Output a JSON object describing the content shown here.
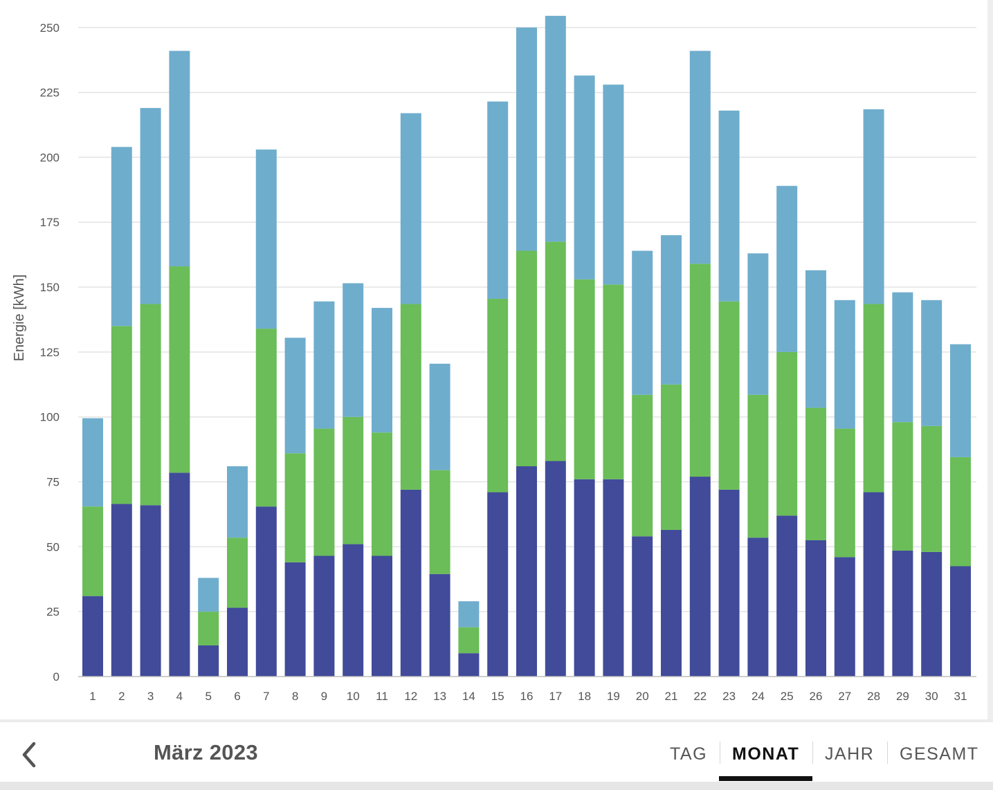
{
  "chart_data": {
    "type": "bar",
    "stacked": true,
    "ylabel": "Energie [kWh]",
    "xlabel": "",
    "ylim": [
      0,
      255
    ],
    "yticks": [
      0,
      25,
      50,
      75,
      100,
      125,
      150,
      175,
      200,
      225,
      250
    ],
    "grid": true,
    "categories": [
      "1",
      "2",
      "3",
      "4",
      "5",
      "6",
      "7",
      "8",
      "9",
      "10",
      "11",
      "12",
      "13",
      "14",
      "15",
      "16",
      "17",
      "18",
      "19",
      "20",
      "21",
      "22",
      "23",
      "24",
      "25",
      "26",
      "27",
      "28",
      "29",
      "30",
      "31"
    ],
    "series": [
      {
        "color": "#414b9a",
        "values": [
          31,
          66.5,
          66,
          78.5,
          12,
          26.5,
          65.5,
          44,
          46.5,
          51,
          46.5,
          72,
          39.5,
          9,
          71,
          81,
          83,
          76,
          76,
          54,
          56.5,
          77,
          72,
          53.5,
          62,
          52.5,
          46,
          71,
          48.5,
          48,
          42.5
        ]
      },
      {
        "color": "#6abd58",
        "values": [
          34.5,
          68.5,
          77.5,
          79.5,
          13,
          27,
          68.5,
          42,
          49,
          49,
          47.5,
          71.5,
          40,
          10,
          74.5,
          83,
          84.5,
          77,
          75,
          54.5,
          56,
          82,
          72.5,
          55,
          63,
          51,
          49.5,
          72.5,
          49.5,
          48.5,
          42
        ]
      },
      {
        "color": "#6fadcd",
        "values": [
          34,
          69,
          75.5,
          83,
          13,
          27.5,
          69,
          44.5,
          49,
          51.5,
          48,
          73.5,
          41,
          10,
          76,
          86,
          87,
          78.5,
          77,
          55.5,
          57.5,
          82,
          73.5,
          54.5,
          64,
          53,
          49.5,
          75,
          50,
          48.5,
          43.5
        ]
      }
    ]
  },
  "footer": {
    "back_icon": "chevron-left-icon",
    "period": "März 2023",
    "tabs": [
      {
        "label": "TAG",
        "active": false
      },
      {
        "label": "MONAT",
        "active": true
      },
      {
        "label": "JAHR",
        "active": false
      },
      {
        "label": "GESAMT",
        "active": false
      }
    ]
  }
}
